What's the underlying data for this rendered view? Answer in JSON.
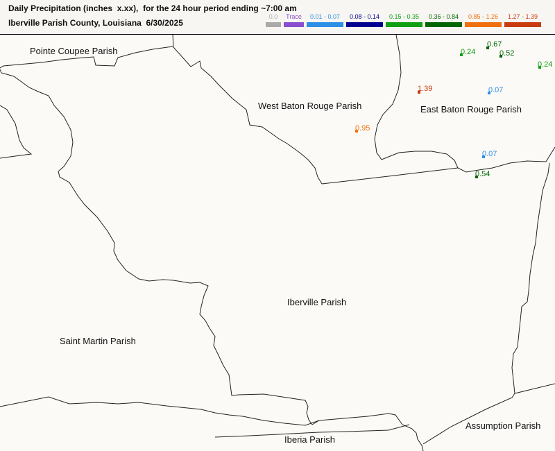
{
  "header": {
    "title_line1": "Daily Precipitation (inches  x.xx),  for the 24 hour period ending ~7:00 am",
    "title_line2": "Iberville Parish County, Louisiana  6/30/2025"
  },
  "legend": [
    {
      "label": "0.0",
      "color": "#aaaaaa"
    },
    {
      "label": "Trace",
      "color": "#8a4fcf"
    },
    {
      "label": "0.01 - 0.07",
      "color": "#2e8fe6"
    },
    {
      "label": "0.08 - 0.14",
      "color": "#000090"
    },
    {
      "label": "0.15 - 0.35",
      "color": "#12a012"
    },
    {
      "label": "0.36 - 0.84",
      "color": "#006600"
    },
    {
      "label": "0.85 - 1.26",
      "color": "#f07010"
    },
    {
      "label": "1.27 - 1.39",
      "color": "#c83c10"
    }
  ],
  "parishes": {
    "pointe_coupee": "Pointe Coupee Parish",
    "west_baton_rouge": "West Baton Rouge Parish",
    "east_baton_rouge": "East Baton Rouge Parish",
    "iberville": "Iberville Parish",
    "saint_martin": "Saint Martin Parish",
    "iberia": "Iberia Parish",
    "assumption": "Assumption Parish"
  },
  "stations": [
    {
      "value": "0.24",
      "color": "#12a012"
    },
    {
      "value": "0.67",
      "color": "#006600"
    },
    {
      "value": "0.52",
      "color": "#006600"
    },
    {
      "value": "0.24",
      "color": "#12a012"
    },
    {
      "value": "1.39",
      "color": "#c83c10"
    },
    {
      "value": "0.07",
      "color": "#2e8fe6"
    },
    {
      "value": "0.95",
      "color": "#f07010"
    },
    {
      "value": "0.07",
      "color": "#2e8fe6"
    },
    {
      "value": "0.54",
      "color": "#006600"
    }
  ]
}
